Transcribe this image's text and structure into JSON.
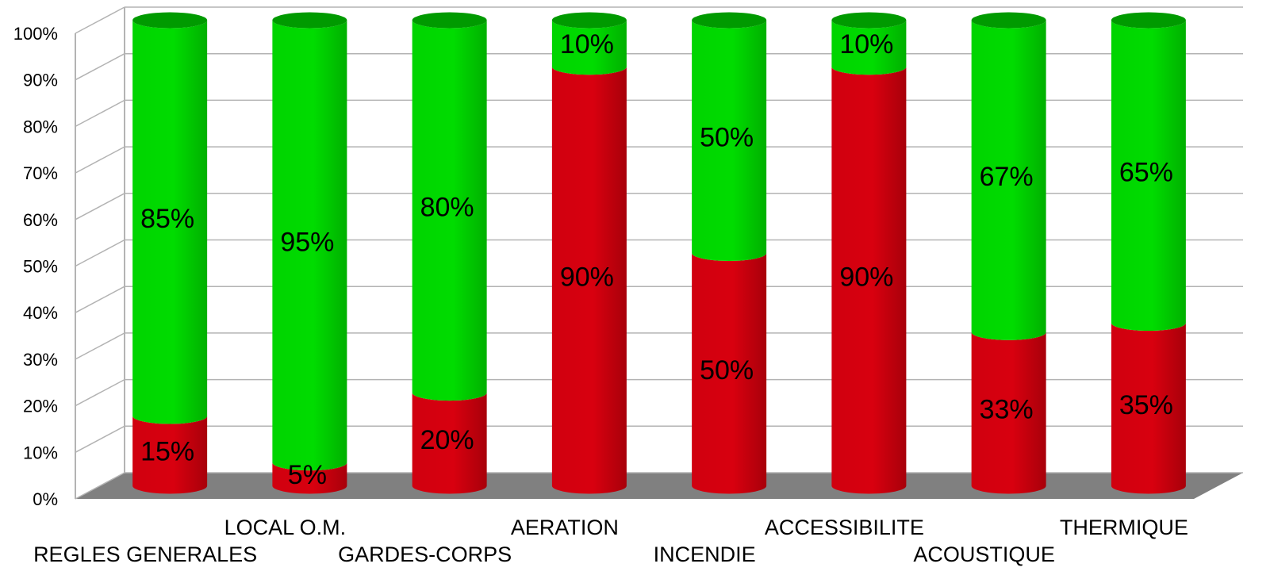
{
  "chart_data": {
    "type": "bar",
    "stacked": true,
    "percent": true,
    "style": "3d-cylinder",
    "categories": [
      "REGLES GENERALES",
      "LOCAL O.M.",
      "GARDES-CORPS",
      "AERATION",
      "INCENDIE",
      "ACCESSIBILITE",
      "ACOUSTIQUE",
      "THERMIQUE"
    ],
    "series": [
      {
        "values": [
          15,
          5,
          20,
          90,
          50,
          90,
          33,
          35
        ],
        "color": "#d0000f"
      },
      {
        "values": [
          85,
          95,
          80,
          10,
          50,
          10,
          67,
          65
        ],
        "color": "#00d600"
      }
    ],
    "data_labels": [
      [
        "15%",
        "5%",
        "20%",
        "90%",
        "50%",
        "90%",
        "33%",
        "35%"
      ],
      [
        "85%",
        "95%",
        "80%",
        "10%",
        "50%",
        "10%",
        "67%",
        "65%"
      ]
    ],
    "yticks": [
      "0%",
      "10%",
      "20%",
      "30%",
      "40%",
      "50%",
      "60%",
      "70%",
      "80%",
      "90%",
      "100%"
    ],
    "ylim": [
      0,
      100
    ],
    "grid": true,
    "legend": "none",
    "title": "",
    "xlabel": "",
    "ylabel": "",
    "floor_color": "#808080"
  }
}
